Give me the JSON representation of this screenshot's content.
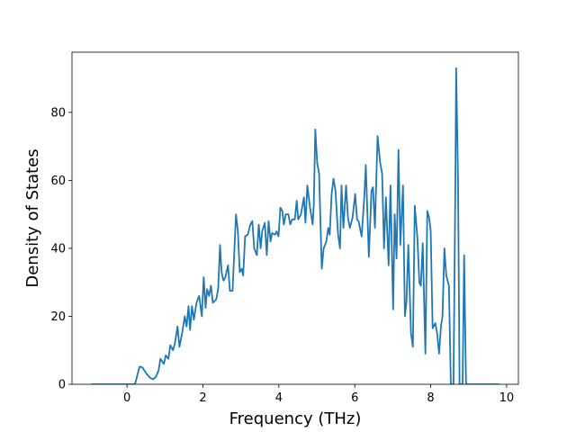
{
  "chart_data": {
    "type": "line",
    "xlabel": "Frequency (THz)",
    "ylabel": "Density of States",
    "color": "#1f77b4",
    "xlim": [
      -1.45,
      10.31
    ],
    "xticks": [
      0,
      2,
      4,
      6,
      8,
      10
    ],
    "ylim": [
      0,
      97.7
    ],
    "yticks": [
      0,
      20,
      40,
      60,
      80
    ],
    "x": [
      -0.95,
      0.21,
      0.33,
      0.4,
      0.52,
      0.62,
      0.69,
      0.76,
      0.83,
      0.88,
      0.97,
      1.02,
      1.09,
      1.14,
      1.21,
      1.26,
      1.33,
      1.38,
      1.45,
      1.52,
      1.57,
      1.62,
      1.66,
      1.71,
      1.76,
      1.83,
      1.9,
      1.97,
      2.02,
      2.07,
      2.11,
      2.16,
      2.21,
      2.26,
      2.35,
      2.4,
      2.45,
      2.49,
      2.54,
      2.59,
      2.66,
      2.71,
      2.78,
      2.83,
      2.87,
      2.92,
      2.97,
      3.02,
      3.06,
      3.11,
      3.18,
      3.25,
      3.3,
      3.35,
      3.42,
      3.47,
      3.52,
      3.56,
      3.63,
      3.68,
      3.73,
      3.78,
      3.82,
      3.9,
      3.94,
      3.99,
      4.04,
      4.09,
      4.13,
      4.18,
      4.25,
      4.3,
      4.35,
      4.42,
      4.47,
      4.51,
      4.58,
      4.66,
      4.7,
      4.75,
      4.82,
      4.89,
      4.92,
      4.96,
      5.01,
      5.06,
      5.13,
      5.18,
      5.25,
      5.3,
      5.34,
      5.39,
      5.44,
      5.49,
      5.56,
      5.61,
      5.65,
      5.7,
      5.77,
      5.82,
      5.87,
      5.94,
      6.01,
      6.06,
      6.1,
      6.18,
      6.25,
      6.29,
      6.37,
      6.44,
      6.48,
      6.53,
      6.6,
      6.67,
      6.72,
      6.77,
      6.82,
      6.89,
      6.94,
      7.01,
      7.05,
      7.1,
      7.15,
      7.2,
      7.27,
      7.32,
      7.36,
      7.41,
      7.48,
      7.53,
      7.58,
      7.65,
      7.7,
      7.74,
      7.79,
      7.86,
      7.91,
      7.96,
      8.0,
      8.05,
      8.12,
      8.17,
      8.22,
      8.27,
      8.31,
      8.36,
      8.41,
      8.48,
      8.53,
      8.6,
      8.65,
      8.67,
      8.72,
      8.76,
      8.84,
      8.88,
      8.93,
      9.81
    ],
    "values": [
      0,
      0,
      5.2,
      5,
      3,
      1.8,
      1.5,
      2.2,
      4,
      7.5,
      6,
      8.5,
      7.5,
      11.5,
      10,
      12,
      17,
      11,
      15,
      20,
      17,
      23,
      16,
      23,
      19,
      24,
      26,
      20,
      31.5,
      22.5,
      28,
      26,
      29,
      24,
      25,
      28,
      41,
      33,
      30.5,
      31.5,
      35,
      27.5,
      27.5,
      40,
      50,
      45,
      33,
      34,
      32,
      43.5,
      44,
      47,
      48,
      40,
      38,
      47,
      40,
      45,
      47.5,
      38,
      48,
      42,
      44.5,
      44,
      45,
      43.5,
      52,
      51,
      47,
      50,
      50,
      47,
      48.5,
      48.5,
      54,
      48.5,
      50,
      55,
      47.5,
      58.5,
      52,
      47,
      53,
      75,
      65,
      62,
      34,
      40,
      42,
      46,
      44,
      56,
      60.5,
      57,
      44,
      40,
      58.5,
      46,
      58.5,
      49,
      46,
      49,
      56,
      48.5,
      48,
      43.5,
      55,
      64.5,
      37.5,
      57,
      58,
      46,
      73,
      65,
      62,
      40,
      55,
      35,
      58.5,
      22,
      50,
      37,
      69,
      41,
      58.5,
      20,
      24,
      41,
      15,
      11,
      52.5,
      43,
      30,
      29,
      41.5,
      9,
      51,
      49,
      45,
      16.5,
      18,
      15,
      9,
      17,
      20,
      40,
      32,
      29,
      0,
      0,
      60,
      93,
      60,
      0,
      0,
      38,
      0,
      0
    ]
  }
}
